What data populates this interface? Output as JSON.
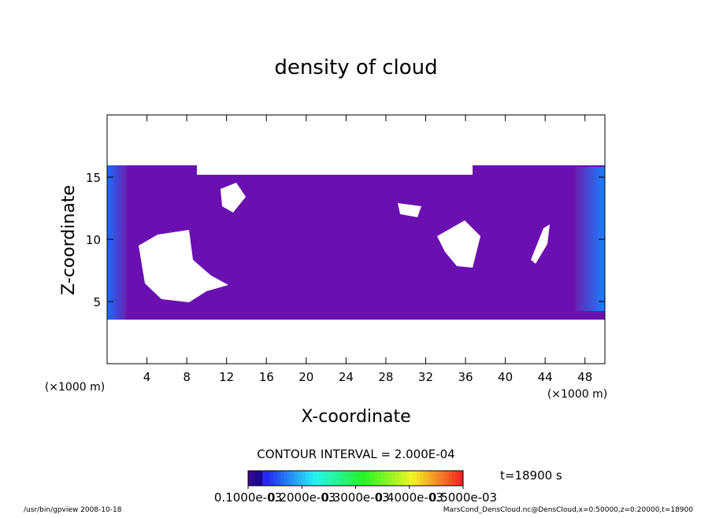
{
  "chart_data": {
    "type": "contour",
    "title": "density of cloud",
    "xlabel": "X-coordinate",
    "ylabel": "Z-coordinate",
    "xunit": "(×1000 m)",
    "xunit_right": "(×1000 m)",
    "xlim": [
      0,
      50
    ],
    "ylim": [
      0,
      20
    ],
    "xticks": [
      4,
      8,
      12,
      16,
      20,
      24,
      28,
      32,
      36,
      40,
      44,
      48
    ],
    "yticks": [
      5,
      10,
      15
    ],
    "contour_interval": "CONTOUR INTERVAL = 2.000E-04",
    "time_label": "t=18900 s",
    "clim": [
      0.0001,
      0.0005
    ],
    "cticks": [
      {
        "value": 0.0001,
        "label": "0.1000e-03"
      },
      {
        "value": 0.0002,
        "label": "0.2000e-03"
      },
      {
        "value": 0.0003,
        "label": "0.3000e-03"
      },
      {
        "value": 0.0004,
        "label": "0.4000e-03"
      },
      {
        "value": 0.0005,
        "label": "0.5000e-03"
      }
    ],
    "footer_left": "/usr/bin/gpview   2008-10-18",
    "footer_right": "MarsCond_DensCloud.nc@DensCloud,x=0:50000,z=0:20000,t=18900"
  }
}
